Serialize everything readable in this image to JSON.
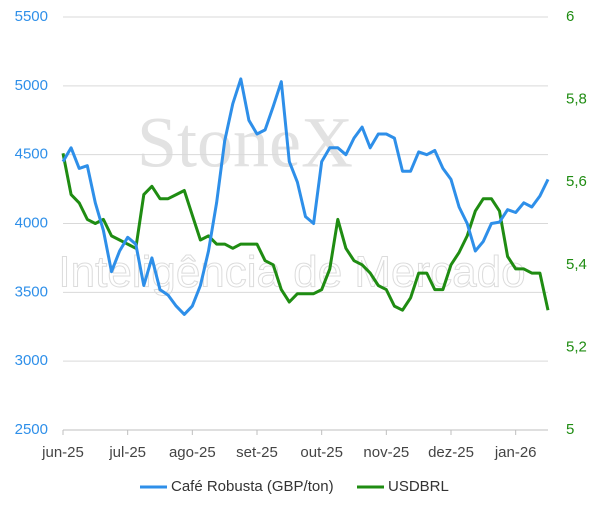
{
  "chart_data": {
    "type": "line",
    "watermark": {
      "title": "StoneX",
      "subtitle": "Inteligência de Mercado"
    },
    "categories": [
      "jun-25",
      null,
      null,
      null,
      null,
      null,
      null,
      null,
      "jul-25",
      null,
      null,
      null,
      null,
      null,
      null,
      null,
      "ago-25",
      null,
      null,
      null,
      null,
      null,
      null,
      null,
      "set-25",
      null,
      null,
      null,
      null,
      null,
      null,
      null,
      "out-25",
      null,
      null,
      null,
      null,
      null,
      null,
      null,
      "nov-25",
      null,
      null,
      null,
      null,
      null,
      null,
      null,
      "dez-25",
      null,
      null,
      null,
      null,
      null,
      null,
      null,
      "jan-26",
      null,
      null,
      null,
      null
    ],
    "series": [
      {
        "name": "Café Robusta (GBP/ton)",
        "color": "#2e8fe9",
        "axis": "y",
        "values": [
          4450,
          4550,
          4400,
          4420,
          4150,
          3950,
          3650,
          3800,
          3900,
          3850,
          3550,
          3750,
          3520,
          3480,
          3400,
          3340,
          3400,
          3550,
          3800,
          4150,
          4600,
          4870,
          5050,
          4750,
          4650,
          4680,
          4850,
          5030,
          4450,
          4300,
          4050,
          4000,
          4450,
          4550,
          4550,
          4500,
          4620,
          4700,
          4550,
          4650,
          4650,
          4620,
          4380,
          4380,
          4520,
          4500,
          4530,
          4400,
          4320,
          4120,
          4000,
          3800,
          3870,
          4000,
          4010,
          4100,
          4080,
          4150,
          4120,
          4200,
          4320
        ]
      },
      {
        "name": "USDBRL",
        "color": "#1f8c12",
        "axis": "y2",
        "values": [
          5.67,
          5.57,
          5.55,
          5.51,
          5.5,
          5.51,
          5.47,
          5.46,
          5.45,
          5.44,
          5.57,
          5.59,
          5.56,
          5.56,
          5.57,
          5.58,
          5.52,
          5.46,
          5.47,
          5.45,
          5.45,
          5.44,
          5.45,
          5.45,
          5.45,
          5.41,
          5.4,
          5.34,
          5.31,
          5.33,
          5.33,
          5.33,
          5.34,
          5.39,
          5.51,
          5.44,
          5.41,
          5.4,
          5.38,
          5.35,
          5.34,
          5.3,
          5.29,
          5.32,
          5.38,
          5.38,
          5.34,
          5.34,
          5.4,
          5.43,
          5.47,
          5.53,
          5.56,
          5.56,
          5.53,
          5.42,
          5.39,
          5.39,
          5.38,
          5.38,
          5.29
        ]
      }
    ],
    "ylim": [
      2500,
      5500
    ],
    "yticks": [
      2500,
      3000,
      3500,
      4000,
      4500,
      5000,
      5500
    ],
    "y2lim": [
      5,
      6
    ],
    "y2ticks": [
      5,
      {
        "value": 5.2,
        "label": "5,2"
      },
      {
        "value": 5.4,
        "label": "5,4"
      },
      {
        "value": 5.6,
        "label": "5,6"
      },
      {
        "value": 5.8,
        "label": "5,8"
      },
      6
    ],
    "grid": true,
    "legend": "bottom"
  }
}
